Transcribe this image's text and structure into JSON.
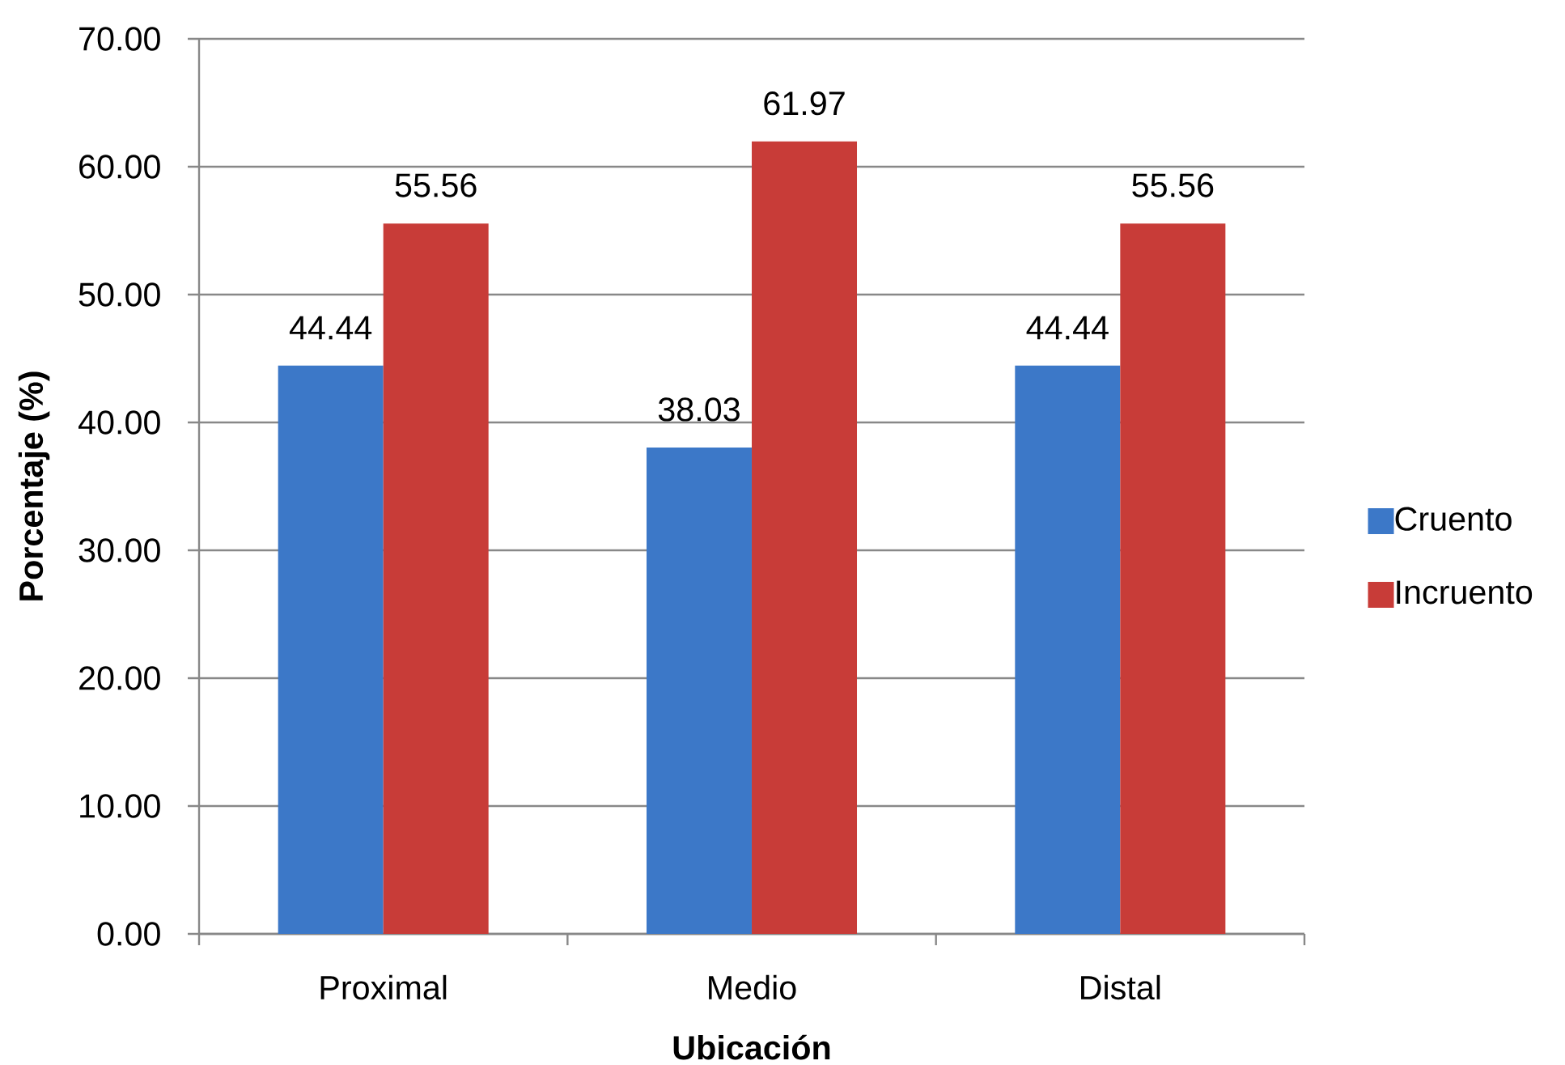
{
  "chart_data": {
    "type": "bar",
    "categories": [
      "Proximal",
      "Medio",
      "Distal"
    ],
    "series": [
      {
        "name": "Cruento",
        "color": "#3c78c8",
        "values": [
          44.44,
          38.03,
          44.44
        ]
      },
      {
        "name": "Incruento",
        "color": "#c83c38",
        "values": [
          55.56,
          61.97,
          55.56
        ]
      }
    ],
    "xlabel": "Ubicación",
    "ylabel": "Porcentaje (%)",
    "ylim": [
      0,
      70
    ],
    "yticks": [
      {
        "value": 0,
        "label": "0.00"
      },
      {
        "value": 10,
        "label": "10.00"
      },
      {
        "value": 20,
        "label": "20.00"
      },
      {
        "value": 30,
        "label": "30.00"
      },
      {
        "value": 40,
        "label": "40.00"
      },
      {
        "value": 50,
        "label": "50.00"
      },
      {
        "value": 60,
        "label": "60.00"
      },
      {
        "value": 70,
        "label": "70.00"
      }
    ],
    "grid": "y",
    "legend": "right",
    "data_labels": true
  }
}
